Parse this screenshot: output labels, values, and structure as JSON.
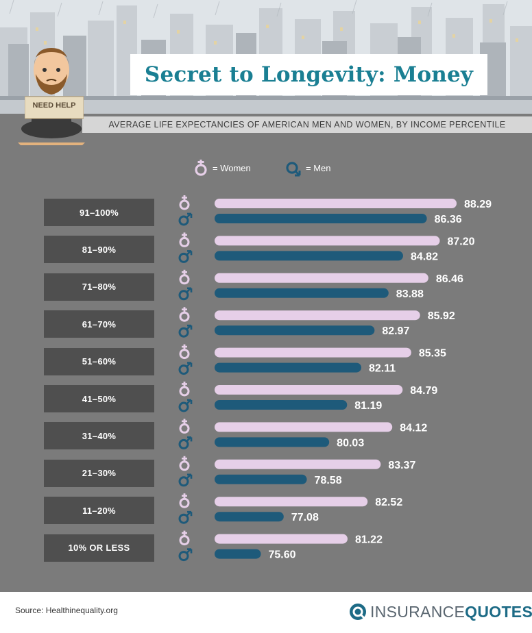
{
  "title": "Secret to Longevity: Money",
  "subtitle": "AVERAGE LIFE EXPECTANCIES OF AMERICAN MEN AND WOMEN, BY INCOME PERCENTILE",
  "sign_text": "NEED HELP",
  "legend": {
    "women": "= Women",
    "men": "= Men"
  },
  "source": "Source: Healthinequality.org",
  "brand": {
    "part1": "INSURANCE",
    "part2": "QUOTES"
  },
  "colors": {
    "women": "#e6cfe8",
    "men": "#1e5a7a",
    "title": "#1a7f93",
    "panel": "#7b7b7b",
    "category_box": "#4f4f4f"
  },
  "icons": {
    "women": "female-symbol-icon",
    "men": "male-symbol-icon",
    "logo": "insurancequotes-logo-icon"
  },
  "chart_data": {
    "type": "bar",
    "orientation": "horizontal",
    "title": "Secret to Longevity: Money",
    "subtitle": "AVERAGE LIFE EXPECTANCIES OF AMERICAN MEN AND WOMEN, BY INCOME PERCENTILE",
    "categories": [
      "91–100%",
      "81–90%",
      "71–80%",
      "61–70%",
      "51–60%",
      "41–50%",
      "31–40%",
      "21–30%",
      "11–20%",
      "10% OR LESS"
    ],
    "series": [
      {
        "name": "Women",
        "values": [
          88.29,
          87.2,
          86.46,
          85.92,
          85.35,
          84.79,
          84.12,
          83.37,
          82.52,
          81.22
        ],
        "labels": [
          "88.29",
          "87.20",
          "86.46",
          "85.92",
          "85.35",
          "84.79",
          "84.12",
          "83.37",
          "82.52",
          "81.22"
        ]
      },
      {
        "name": "Men",
        "values": [
          86.36,
          84.82,
          83.88,
          82.97,
          82.11,
          81.19,
          80.03,
          78.58,
          77.08,
          75.6
        ],
        "labels": [
          "86.36",
          "84.82",
          "83.88",
          "82.97",
          "82.11",
          "81.19",
          "80.03",
          "78.58",
          "77.08",
          "75.60"
        ]
      }
    ],
    "xlim": [
      72.6,
      88.29
    ],
    "axes_visible": false,
    "grid": false,
    "data_labels": true,
    "legend_position": "top-center"
  }
}
